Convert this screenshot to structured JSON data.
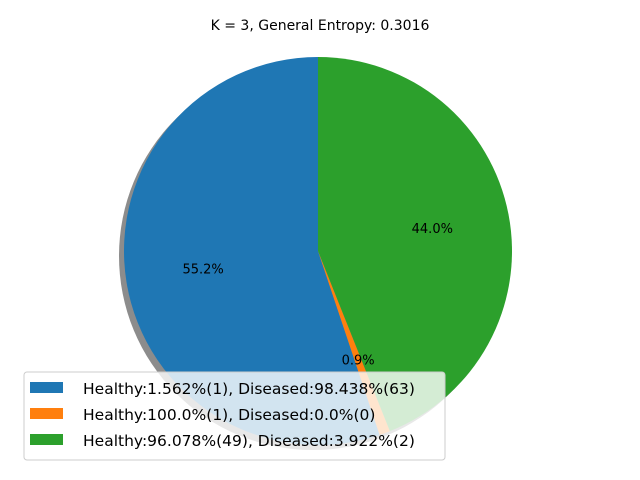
{
  "chart_data": {
    "type": "pie",
    "title": "K = 3, General Entropy: 0.3016",
    "slices": [
      {
        "label": "Healthy:1.562%(1), Diseased:98.438%(63)",
        "value": 55.2,
        "pct_label": "55.2%",
        "color": "#1f77b4"
      },
      {
        "label": "Healthy:100.0%(1), Diseased:0.0%(0)",
        "value": 0.9,
        "pct_label": "0.9%",
        "color": "#ff7f0e"
      },
      {
        "label": "Healthy:96.078%(49), Diseased:3.922%(2)",
        "value": 44.0,
        "pct_label": "44.0%",
        "color": "#2ca02c"
      }
    ],
    "start_angle_deg": 90,
    "direction": "counterclockwise",
    "shadow": true,
    "legend_position": "lower-left"
  }
}
